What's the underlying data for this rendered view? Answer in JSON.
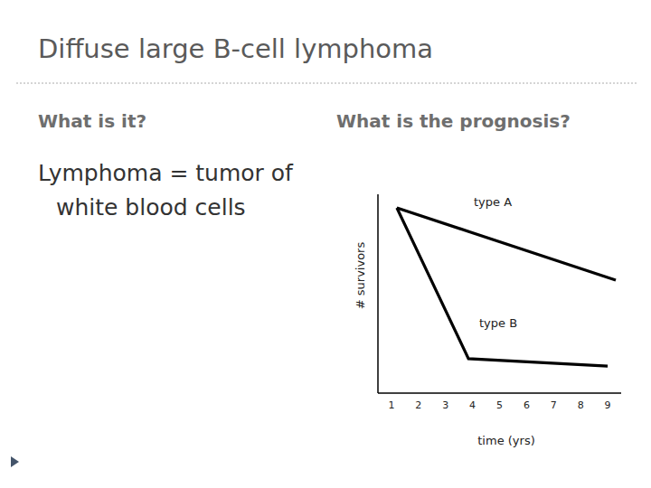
{
  "slide": {
    "title": "Diffuse large B-cell lymphoma",
    "left_heading": "What is it?",
    "right_heading": "What is the prognosis?",
    "body": [
      "Lymphoma = tumor of",
      "white blood cells"
    ]
  },
  "chart_data": {
    "type": "line",
    "x_label": "time (yrs)",
    "y_label": "# survivors",
    "xlim": [
      0.5,
      9.5
    ],
    "xticks": [
      1,
      2,
      3,
      4,
      5,
      6,
      7,
      8,
      9
    ],
    "ylim": [
      0,
      100
    ],
    "yticks": [],
    "tick_labels": "x",
    "grid": false,
    "series": [
      {
        "name": "type A",
        "color": "#000000",
        "x": [
          1.2,
          9.3
        ],
        "values": [
          93.2,
          56.8
        ]
      },
      {
        "name": "type B",
        "color": "#000000",
        "x": [
          1.2,
          3.85,
          9
        ],
        "values": [
          93.2,
          17.3,
          13.6
        ]
      }
    ]
  }
}
